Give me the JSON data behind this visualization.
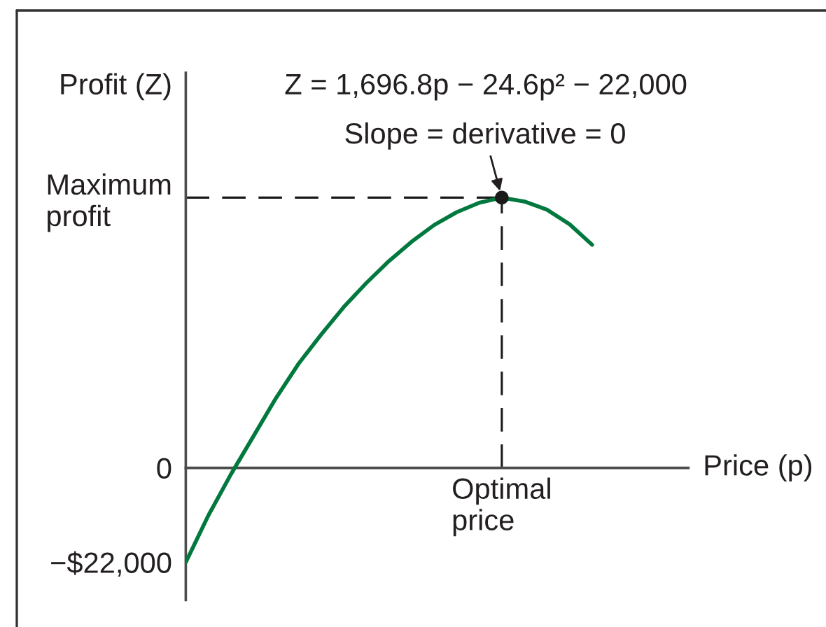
{
  "chart_data": {
    "type": "line",
    "annotations": [
      "Z = 1,696.8p − 24.6p² − 22,000",
      {
        "text": "Slope = derivative = 0",
        "x": "Optimal\nprice",
        "y": 63000
      }
    ],
    "xlabel": "Price (p)",
    "ylabel": "Profit (Z)",
    "categories": [
      null,
      null,
      null,
      null,
      null,
      null,
      null,
      null,
      null,
      null,
      null,
      null,
      null,
      null,
      "Optimal\nprice",
      null,
      null,
      null,
      null
    ],
    "series": [
      {
        "color": "#00783e",
        "values": [
          -22000,
          -11100,
          -1500,
          7400,
          16300,
          24300,
          31100,
          37500,
          43100,
          48200,
          52700,
          56600,
          59600,
          61800,
          63000,
          62100,
          60200,
          56800,
          52000
        ]
      },
      {
        "color": "#1a1a1a",
        "line_style": "dashed",
        "x": [
          "Optimal\nprice",
          "Optimal\nprice"
        ],
        "values": [
          0,
          63000
        ]
      },
      {
        "type": "scatter",
        "color": "#1a1a1a",
        "marker": "circle",
        "x": [
          "Optimal\nprice"
        ],
        "values": [
          63000
        ]
      }
    ],
    "ylim": [
      -30800,
      92100
    ],
    "yticks": [
      {
        "value": 63000,
        "label": "Maximum\nprofit"
      },
      0,
      {
        "value": -22000,
        "label": "−$22,000"
      }
    ],
    "ref_lines": [
      {
        "axis": "y",
        "value": 63000,
        "color": "#1a1a1a",
        "line_style": "dashed"
      }
    ]
  }
}
